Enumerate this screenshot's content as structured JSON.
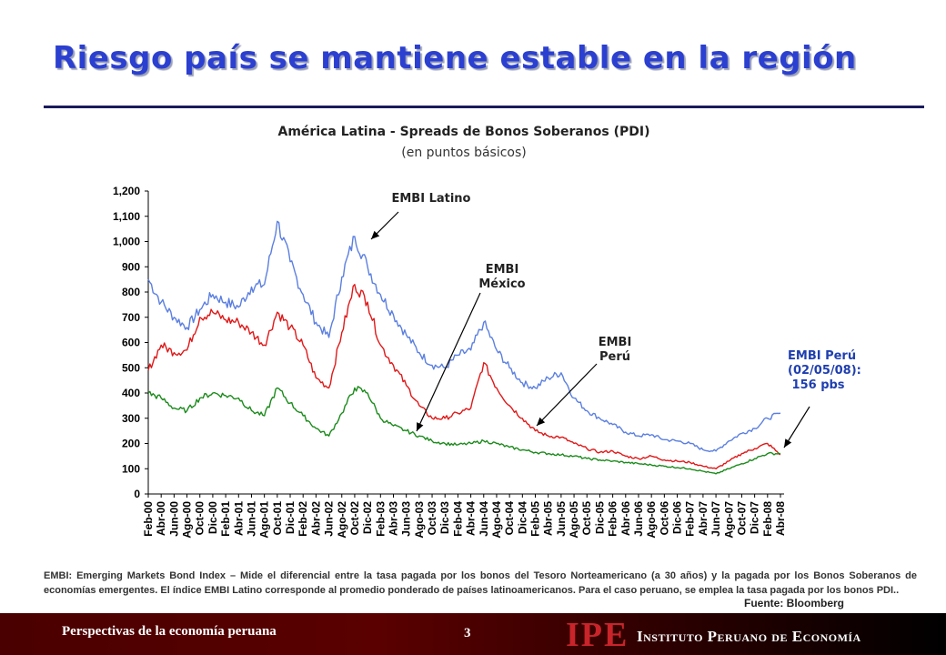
{
  "slide": {
    "title": "Riesgo país se mantiene estable en la región",
    "note": "EMBI: Emerging Markets Bond Index – Mide el diferencial entre la tasa pagada por los bonos del Tesoro Norteamericano (a 30 años) y la pagada por los Bonos Soberanos de economías emergentes. El índice EMBI Latino corresponde al promedio ponderado de países latinoamericanos. Para el caso peruano, se emplea la tasa pagada por los bonos PDI..",
    "source": "Fuente: Bloomberg",
    "footer_left": "Perspectivas de la economía peruana",
    "page_number": "3",
    "logo_mark": "IPE",
    "logo_text": "Instituto Peruano de Economía"
  },
  "chart_data": {
    "type": "line",
    "title": "América Latina - Spreads de Bonos Soberanos (PDI)",
    "subtitle": "(en puntos básicos)",
    "ylim": [
      0,
      1200
    ],
    "yticks": [
      0,
      100,
      200,
      300,
      400,
      500,
      600,
      700,
      800,
      900,
      1000,
      1100,
      1200
    ],
    "ytick_labels": [
      "0",
      "100",
      "200",
      "300",
      "400",
      "500",
      "600",
      "700",
      "800",
      "900",
      "1,000",
      "1,100",
      "1,200"
    ],
    "x": [
      "Feb-00",
      "Abr-00",
      "Jun-00",
      "Ago-00",
      "Oct-00",
      "Dic-00",
      "Feb-01",
      "Abr-01",
      "Jun-01",
      "Ago-01",
      "Oct-01",
      "Dic-01",
      "Feb-02",
      "Abr-02",
      "Jun-02",
      "Ago-02",
      "Oct-02",
      "Dic-02",
      "Feb-03",
      "Abr-03",
      "Jun-03",
      "Ago-03",
      "Oct-03",
      "Dic-03",
      "Feb-04",
      "Abr-04",
      "Jun-04",
      "Ago-04",
      "Oct-04",
      "Dic-04",
      "Feb-05",
      "Abr-05",
      "Jun-05",
      "Ago-05",
      "Oct-05",
      "Dic-05",
      "Feb-06",
      "Abr-06",
      "Jun-06",
      "Ago-06",
      "Oct-06",
      "Dic-06",
      "Feb-07",
      "Abr-07",
      "Jun-07",
      "Ago-07",
      "Oct-07",
      "Dic-07",
      "Feb-08",
      "Abr-08"
    ],
    "series": [
      {
        "name": "EMBI Latino",
        "color": "#5b7fe0",
        "values": [
          850,
          760,
          700,
          660,
          730,
          790,
          760,
          740,
          820,
          830,
          1080,
          920,
          790,
          680,
          620,
          860,
          1020,
          900,
          790,
          710,
          630,
          560,
          510,
          500,
          550,
          570,
          680,
          570,
          500,
          440,
          420,
          460,
          480,
          380,
          330,
          300,
          275,
          245,
          230,
          235,
          215,
          210,
          200,
          175,
          170,
          210,
          240,
          260,
          300,
          320
        ]
      },
      {
        "name": "EMBI Perú",
        "color": "#e01818",
        "values": [
          490,
          590,
          560,
          570,
          700,
          720,
          690,
          680,
          640,
          590,
          720,
          660,
          590,
          460,
          420,
          640,
          830,
          760,
          590,
          510,
          430,
          350,
          300,
          300,
          320,
          340,
          520,
          420,
          350,
          300,
          250,
          230,
          225,
          200,
          180,
          165,
          170,
          150,
          140,
          150,
          135,
          130,
          125,
          110,
          100,
          130,
          160,
          180,
          200,
          156
        ]
      },
      {
        "name": "EMBI México",
        "color": "#1a8a1a",
        "values": [
          400,
          380,
          340,
          330,
          380,
          400,
          390,
          380,
          330,
          310,
          420,
          360,
          310,
          260,
          230,
          320,
          420,
          400,
          300,
          270,
          250,
          230,
          210,
          200,
          195,
          200,
          210,
          200,
          185,
          175,
          165,
          160,
          155,
          150,
          140,
          135,
          130,
          125,
          120,
          115,
          110,
          105,
          100,
          90,
          80,
          100,
          120,
          140,
          160,
          160
        ]
      }
    ],
    "annotations": [
      {
        "text": "EMBI Latino"
      },
      {
        "text": "EMBI México"
      },
      {
        "text": "EMBI Perú"
      },
      {
        "text": "EMBI Perú (02/05/08): 156 pbs",
        "color": "#1f3fb0"
      }
    ]
  }
}
